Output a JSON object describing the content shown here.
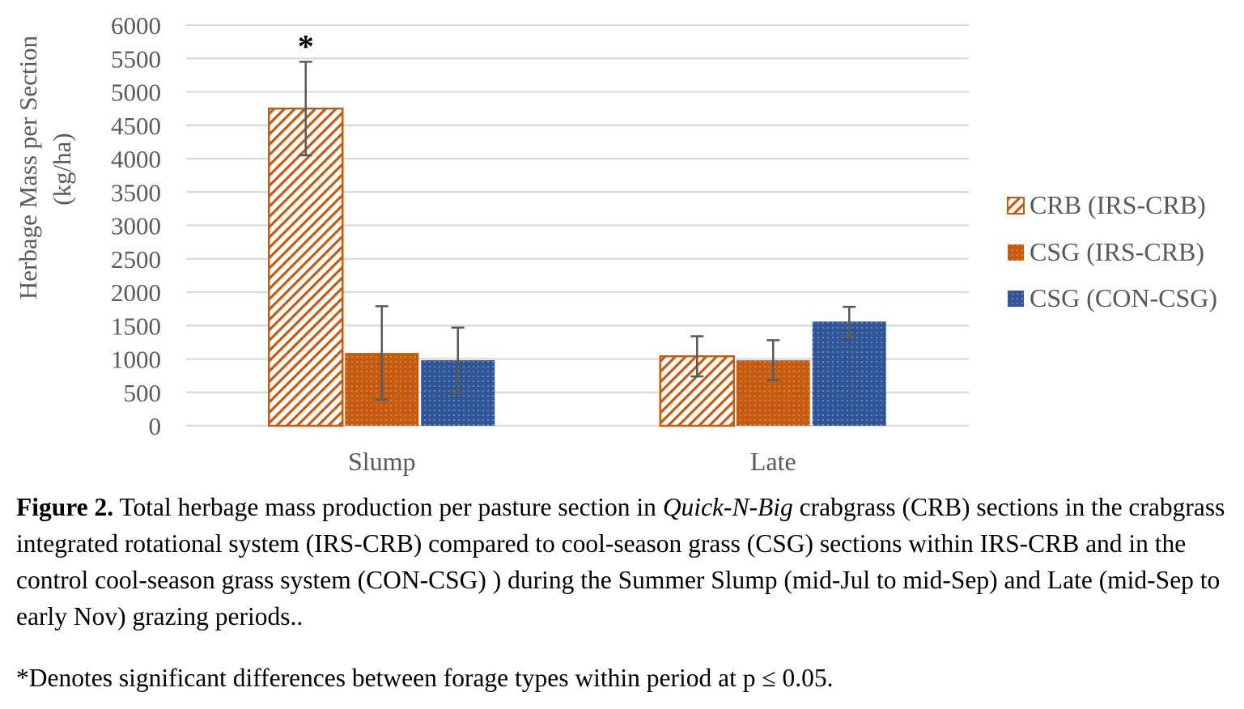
{
  "chart_data": {
    "type": "bar",
    "categories": [
      "Slump",
      "Late"
    ],
    "ylabel_line1": "Herbage Mass per Section",
    "ylabel_line2": "(kg/ha)",
    "ylim": [
      0,
      6000
    ],
    "yticks": [
      0,
      500,
      1000,
      1500,
      2000,
      2500,
      3000,
      3500,
      4000,
      4500,
      5000,
      5500,
      6000
    ],
    "grid": true,
    "legend_position": "right",
    "series": [
      {
        "name": "CRB (IRS-CRB)",
        "color": "#C55A11",
        "pattern": "diagonal-hatch",
        "values": [
          4750,
          1040
        ],
        "error": [
          700,
          300
        ]
      },
      {
        "name": "CSG (IRS-CRB)",
        "color": "#C55A11",
        "pattern": "dotted-solid",
        "values": [
          1090,
          980
        ],
        "error": [
          700,
          300
        ]
      },
      {
        "name": "CSG (CON-CSG)",
        "color": "#2F5597",
        "pattern": "dotted-solid",
        "values": [
          980,
          1560
        ],
        "error": [
          490,
          220
        ]
      }
    ],
    "annotations": [
      {
        "text": "*",
        "category": "Slump",
        "series": "CRB (IRS-CRB)"
      }
    ]
  },
  "caption": {
    "label": "Figure 2.",
    "text_a": " Total herbage mass production per pasture section in ",
    "italic": "Quick-N-Big",
    "text_b": " crabgrass (CRB) sections in the crabgrass integrated rotational system (IRS-CRB) compared to cool-season grass (CSG) sections within IRS-CRB and in the control cool-season grass system (CON-CSG) ) during the Summer Slump (mid-Jul to mid-Sep) and Late (mid-Sep to early Nov) grazing periods.."
  },
  "footnote": "*Denotes significant differences between forage types within period at p ≤ 0.05."
}
